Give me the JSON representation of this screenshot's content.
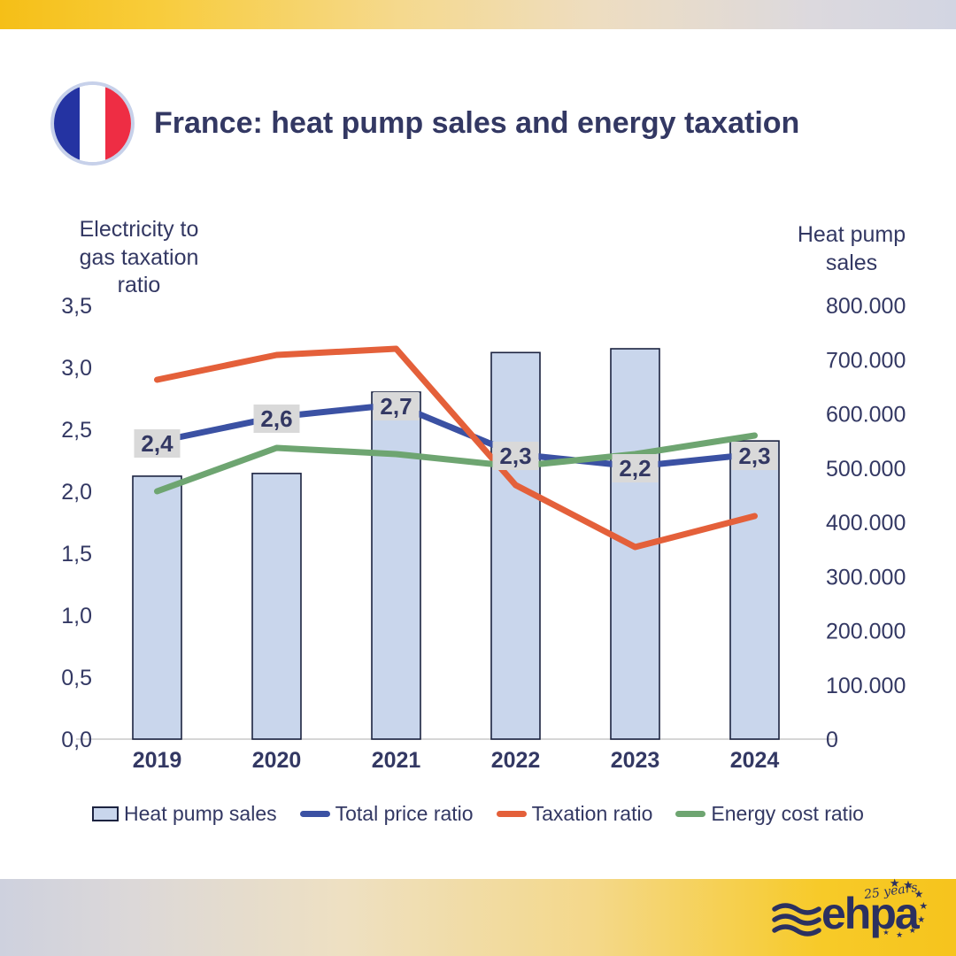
{
  "header": {
    "title": "France: heat pump sales and energy taxation",
    "flag": "france"
  },
  "colors": {
    "text_navy": "#333863",
    "bar_fill": "#c9d6ec",
    "bar_border": "#1c2340",
    "data_label_bg": "#d9d9d9",
    "axis_line": "#d6d6d6",
    "brand_yellow": "#f6c41d"
  },
  "chart_data": {
    "type": "bar+line combo",
    "categories": [
      "2019",
      "2020",
      "2021",
      "2022",
      "2023",
      "2024"
    ],
    "bar_series": {
      "name": "Heat pump sales",
      "axis": "right",
      "color": "#c9d6ec",
      "border": "#1c2340",
      "values": [
        485000,
        490000,
        640000,
        713000,
        720000,
        550000
      ]
    },
    "line_series": [
      {
        "name": "Total price ratio",
        "axis": "left",
        "color": "#3b51a3",
        "values": [
          2.4,
          2.6,
          2.7,
          2.3,
          2.2,
          2.3
        ],
        "labels": [
          "2,4",
          "2,6",
          "2,7",
          "2,3",
          "2,2",
          "2,3"
        ]
      },
      {
        "name": "Taxation ratio",
        "axis": "left",
        "color": "#e4603a",
        "values": [
          2.9,
          3.1,
          3.15,
          2.05,
          1.55,
          1.8
        ]
      },
      {
        "name": "Energy cost ratio",
        "axis": "left",
        "color": "#6ea571",
        "values": [
          2.0,
          2.35,
          2.3,
          2.2,
          2.3,
          2.45
        ]
      }
    ],
    "left_axis": {
      "title": "Electricity to\ngas taxation\nratio",
      "min": 0,
      "max": 3.5,
      "step": 0.5,
      "tick_labels": [
        "0,0",
        "0,5",
        "1,0",
        "1,5",
        "2,0",
        "2,5",
        "3,0",
        "3,5"
      ]
    },
    "right_axis": {
      "title": "Heat pump\nsales",
      "min": 0,
      "max": 800000,
      "step": 100000,
      "tick_labels": [
        "0",
        "100.000",
        "200.000",
        "300.000",
        "400.000",
        "500.000",
        "600.000",
        "700.000",
        "800.000"
      ]
    },
    "grid": false,
    "legend_position": "bottom"
  },
  "footer": {
    "logo_text": "ehpa",
    "logo_badge": "25 years"
  }
}
